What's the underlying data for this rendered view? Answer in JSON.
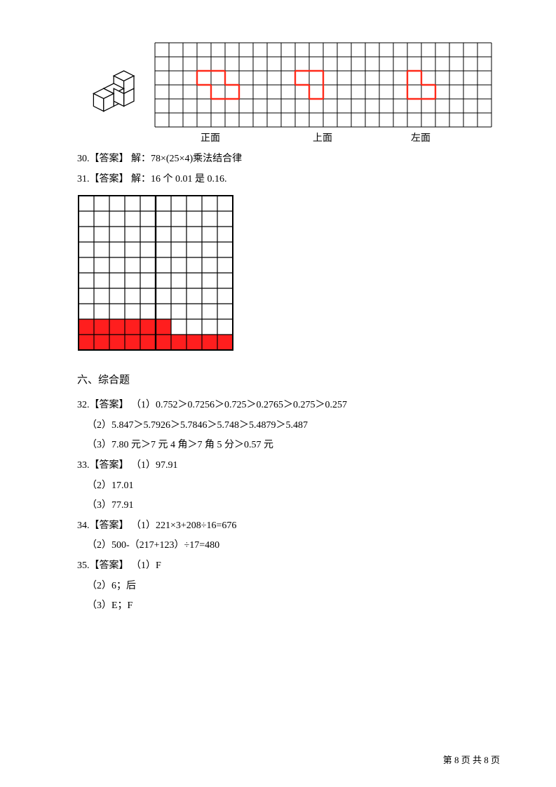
{
  "grid": {
    "cols": 24,
    "rows": 6,
    "outer_color": "#000000",
    "inner_color": "#000000",
    "cell": 20,
    "stroke": 1,
    "shapes": {
      "color": "#ff2a1a",
      "stroke_width": 2.4,
      "front": {
        "cells": [
          [
            3,
            2
          ],
          [
            4,
            2
          ],
          [
            4,
            3
          ],
          [
            5,
            3
          ]
        ]
      },
      "top": {
        "cells": [
          [
            10,
            2
          ],
          [
            11,
            2
          ],
          [
            11,
            3
          ]
        ]
      },
      "left": {
        "cells": [
          [
            18,
            2
          ],
          [
            18,
            3
          ],
          [
            19,
            3
          ]
        ]
      }
    }
  },
  "view_labels": {
    "front": "正面",
    "top": "上面",
    "left": "左面"
  },
  "q30": {
    "label": "30.【答案】 解：",
    "expr": "78×(25×4)乘法结合律"
  },
  "q31": {
    "label": "31.【答案】 解：",
    "expr": "16 个 0.01 是 0.16."
  },
  "decimal_grid": {
    "cols": 10,
    "rows": 10,
    "cell": 22,
    "outer_stroke": 2,
    "inner_stroke": 1.2,
    "vline_col": 5,
    "vline_stroke": 2.4,
    "fill_color": "#ff1e1e",
    "filled_cells": [
      [
        0,
        8
      ],
      [
        1,
        8
      ],
      [
        2,
        8
      ],
      [
        3,
        8
      ],
      [
        4,
        8
      ],
      [
        5,
        8
      ],
      [
        0,
        9
      ],
      [
        1,
        9
      ],
      [
        2,
        9
      ],
      [
        3,
        9
      ],
      [
        4,
        9
      ],
      [
        5,
        9
      ],
      [
        6,
        9
      ],
      [
        7,
        9
      ],
      [
        8,
        9
      ],
      [
        9,
        9
      ]
    ]
  },
  "section6": "六、综合题",
  "q32": {
    "label": "32.【答案】 （1）",
    "p1": "0.752＞0.7256＞0.725＞0.2765＞0.275＞0.257",
    "p2_label": "（2）",
    "p2": "5.847＞5.7926＞5.7846＞5.748＞5.4879＞5.487",
    "p3_label": "（3）",
    "p3": "7.80 元＞7 元 4 角＞7 角 5 分＞0.57 元"
  },
  "q33": {
    "label": "33.【答案】 （1）",
    "p1": "97.91",
    "p2_label": "（2）",
    "p2": "17.01",
    "p3_label": "（3）",
    "p3": "77.91"
  },
  "q34": {
    "label": "34.【答案】 （1）",
    "p1": "221×3+208÷16=676",
    "p2_label": "（2）",
    "p2": "500-（217+123）÷17=480"
  },
  "q35": {
    "label": "35.【答案】 （1）",
    "p1": "F",
    "p2_label": "（2）",
    "p2": "6；后",
    "p3_label": "（3）",
    "p3": "E；F"
  },
  "footer": "第 8 页 共 8 页"
}
